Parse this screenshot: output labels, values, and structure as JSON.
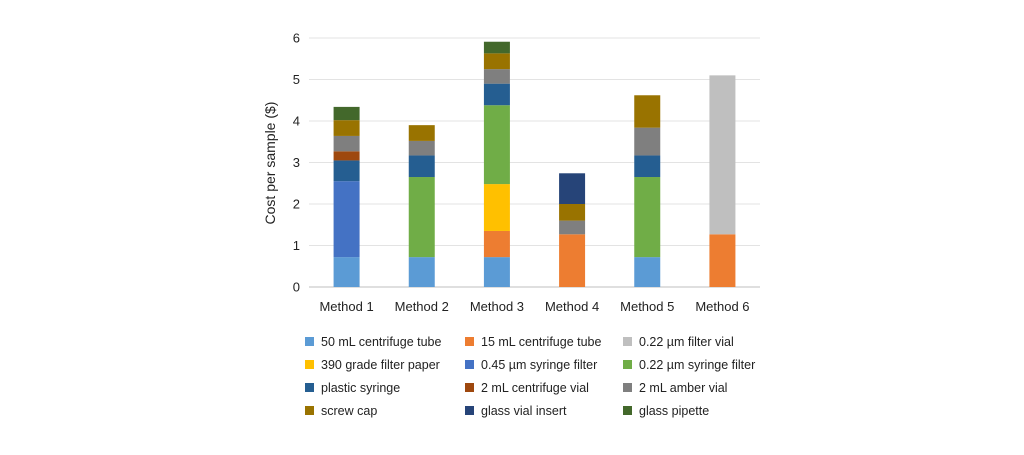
{
  "chart_data": {
    "type": "bar",
    "stacked": true,
    "title": "",
    "xlabel": "",
    "ylabel": "Cost per sample ($)",
    "ylim": [
      0,
      6
    ],
    "yticks": [
      0,
      1,
      2,
      3,
      4,
      5,
      6
    ],
    "grid": true,
    "legend_position": "bottom",
    "categories": [
      "Method 1",
      "Method 2",
      "Method 3",
      "Method 4",
      "Method 5",
      "Method 6"
    ],
    "series": [
      {
        "name": "50 mL centrifuge tube",
        "color": "#5B9BD5",
        "values": [
          0.72,
          0.72,
          0.72,
          0,
          0.72,
          0
        ]
      },
      {
        "name": "15 mL centrifuge tube",
        "color": "#ED7D31",
        "values": [
          0,
          0,
          0.63,
          1.27,
          0,
          1.27
        ]
      },
      {
        "name": "0.22 µm filter vial",
        "color": "#BFBFBF",
        "values": [
          0,
          0,
          0,
          0,
          0,
          3.83
        ]
      },
      {
        "name": "390 grade filter paper",
        "color": "#FFC000",
        "values": [
          0,
          0,
          1.13,
          0,
          0,
          0
        ]
      },
      {
        "name": "0.45 µm syringe filter",
        "color": "#4472C4",
        "values": [
          1.83,
          0,
          0,
          0,
          0,
          0
        ]
      },
      {
        "name": "0.22 µm syringe filter",
        "color": "#70AD47",
        "values": [
          0,
          1.93,
          1.9,
          0,
          1.93,
          0
        ]
      },
      {
        "name": "plastic syringe",
        "color": "#255E91",
        "values": [
          0.5,
          0.52,
          0.52,
          0,
          0.52,
          0
        ]
      },
      {
        "name": "2 mL centrifuge vial",
        "color": "#9E480E",
        "values": [
          0.22,
          0,
          0,
          0,
          0,
          0
        ]
      },
      {
        "name": "2 mL amber vial",
        "color": "#7F7F7F",
        "values": [
          0.37,
          0.35,
          0.35,
          0.33,
          0.67,
          0
        ]
      },
      {
        "name": "screw cap",
        "color": "#997300",
        "values": [
          0.38,
          0.38,
          0.38,
          0.4,
          0.78,
          0
        ]
      },
      {
        "name": "glass vial insert",
        "color": "#264478",
        "values": [
          0,
          0,
          0,
          0.74,
          0,
          0
        ]
      },
      {
        "name": "glass pipette",
        "color": "#43682B",
        "values": [
          0.32,
          0,
          0.28,
          0,
          0,
          0
        ]
      }
    ]
  }
}
